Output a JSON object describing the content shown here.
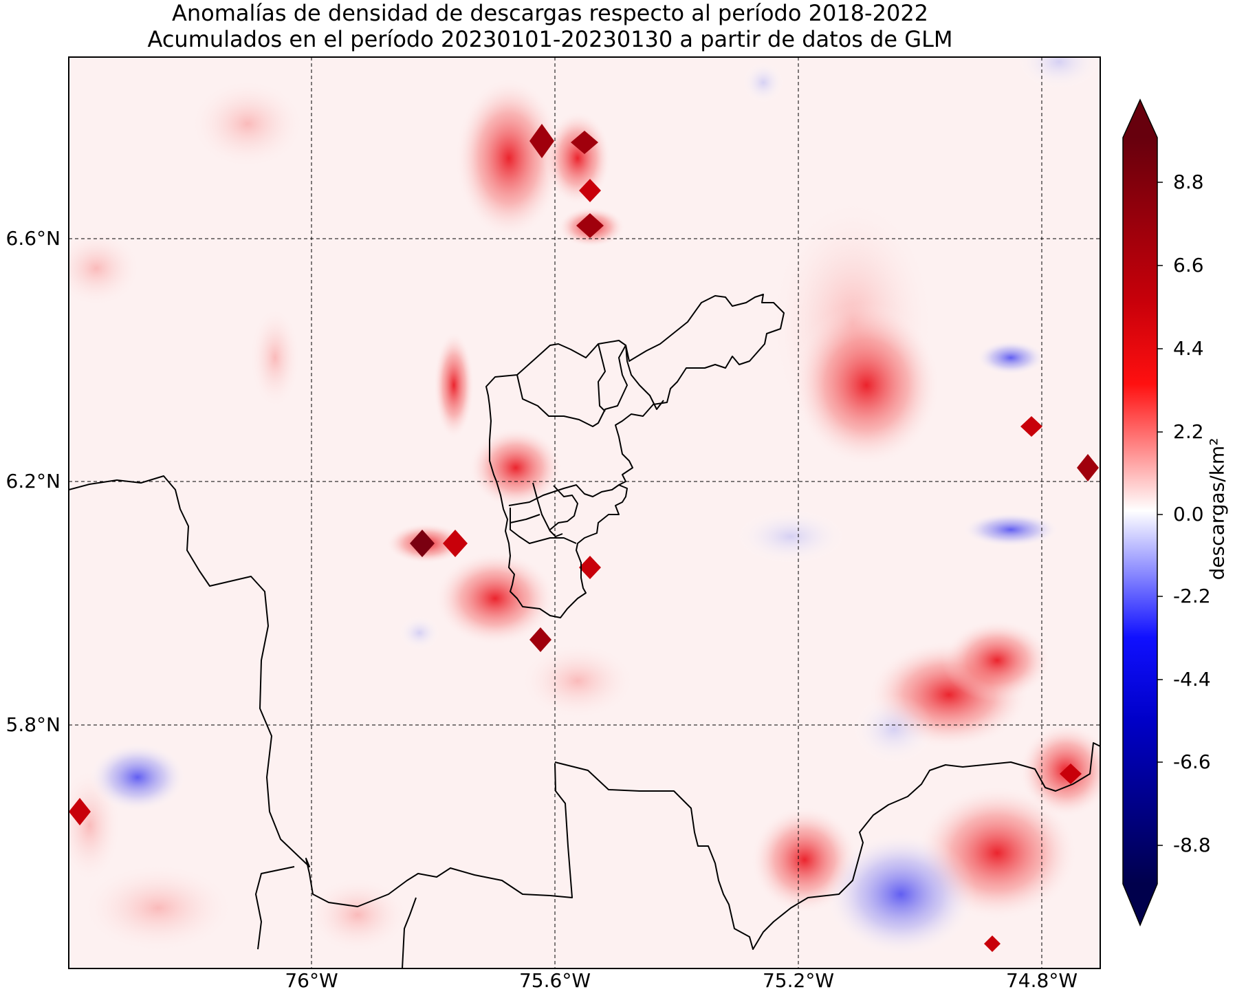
{
  "title_line1": "Anomalías de densidad de descargas respecto al período 2018-2022",
  "title_line2": "Acumulados en el período 20230101-20230130 a partir de datos de GLM",
  "latitude_labels": [
    "6.6°N",
    "6.2°N",
    "5.8°N"
  ],
  "longitude_labels": [
    "76°W",
    "75.6°W",
    "75.2°W",
    "74.8°W"
  ],
  "colorbar": {
    "label": "descargas/km²",
    "tick_labels": [
      "8.8",
      "6.6",
      "4.4",
      "2.2",
      "0.0",
      "-2.2",
      "-4.4",
      "-6.6",
      "-8.8"
    ],
    "colors": {
      "max": "#67000d",
      "high": "#ff0000",
      "zero": "#ffffff",
      "low": "#0000ff",
      "min": "#00004c"
    }
  }
}
